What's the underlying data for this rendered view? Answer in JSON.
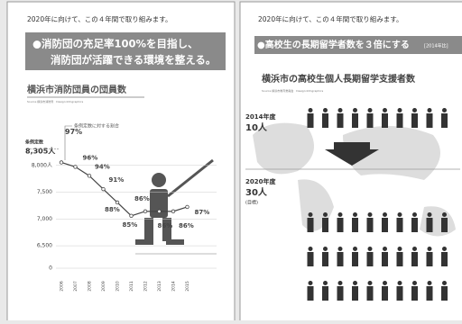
{
  "left_page": {
    "lead": "2020年に向けて、この４年間で取り組みます。",
    "banner": [
      "●消防団の充足率100%を目指し、",
      "消防団が活躍できる環境を整える。"
    ],
    "chart": {
      "type": "line",
      "title": "横浜市消防団員の団員数",
      "source": "Source 横浜市消防局　Design:Infographics",
      "quota_label": "条例定数",
      "quota": {
        "value": 8305,
        "label": "8,305人"
      },
      "ratio_caption": "条例定数に対する割合",
      "categories": [
        "2006",
        "2007",
        "2008",
        "2009",
        "2010",
        "2011",
        "2012",
        "2013",
        "2014",
        "2015"
      ],
      "values": [
        97,
        96,
        94,
        91,
        88,
        85,
        86,
        86,
        86,
        87
      ],
      "value_labels": [
        "97%",
        "96%",
        "94%",
        "91%",
        "88%",
        "85%",
        "86%",
        "86%",
        "86%",
        "87%"
      ],
      "ylim": [
        6300,
        8400
      ],
      "yticks": [
        0,
        {
          "value": 6500,
          "label": "6,500"
        },
        {
          "value": 7000,
          "label": "7,000"
        },
        {
          "value": 7500,
          "label": "7,500"
        },
        {
          "value": 8000,
          "label": "8,000人"
        }
      ]
    }
  },
  "right_page": {
    "lead": "2020年に向けて、この４年間で取り組みます。",
    "banner": "●高校生の長期留学者数を３倍にする",
    "banner_note": "[2014年比]",
    "title": "横浜市の高校生個人長期留学支援者数",
    "source": "Source 横浜市教育委員会　Design:Infographics",
    "before": {
      "year": "2014年度",
      "count": {
        "value": 10,
        "label": "10人"
      }
    },
    "after": {
      "year": "2020年度",
      "count": {
        "value": 30,
        "label": "30人"
      },
      "note": "(目標)"
    }
  }
}
